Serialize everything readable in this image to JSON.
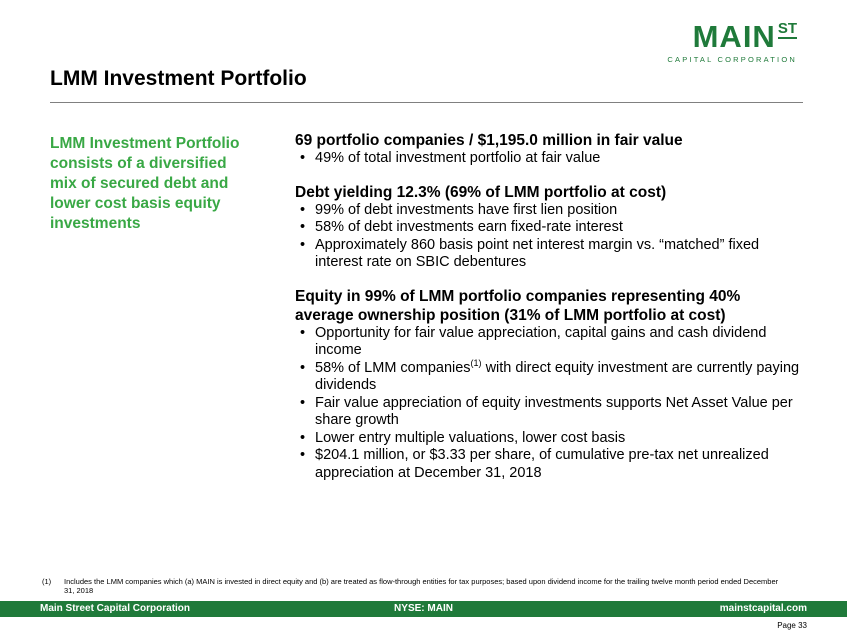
{
  "logo": {
    "main": "MAIN",
    "superscript": "ST",
    "subtitle": "CAPITAL CORPORATION"
  },
  "title": "LMM Investment Portfolio",
  "sidebar": {
    "text": "LMM Investment Portfolio consists of a diversified mix of secured debt and lower cost basis equity investments"
  },
  "sections": [
    {
      "heading": "69 portfolio companies / $1,195.0 million in fair value",
      "bullets": [
        "49% of total investment portfolio at fair value"
      ]
    },
    {
      "heading": "Debt yielding 12.3% (69% of LMM portfolio at cost)",
      "bullets": [
        "99% of debt investments have first lien position",
        "58% of debt investments earn fixed-rate interest",
        "Approximately 860 basis point net interest margin vs. “matched” fixed interest rate on SBIC debentures"
      ]
    },
    {
      "heading": "Equity in 99% of LMM portfolio companies representing 40% average ownership position (31% of LMM portfolio at cost)",
      "bullets": [
        {
          "text": "Opportunity for fair value appreciation, capital gains and cash dividend income"
        },
        {
          "before": "58% of LMM companies",
          "sup": "(1)",
          "after": " with direct equity investment are currently paying dividends"
        },
        {
          "text": "Fair value appreciation of equity investments supports Net Asset Value per share growth"
        },
        {
          "text": "Lower entry multiple valuations, lower cost basis"
        },
        {
          "text": "$204.1 million, or $3.33 per share, of cumulative pre-tax net unrealized appreciation at December 31, 2018"
        }
      ]
    }
  ],
  "footnote": {
    "number": "(1)",
    "text": "Includes the LMM companies which (a) MAIN is invested in direct equity and (b) are treated as flow-through entities for tax purposes; based upon dividend income for the trailing twelve month period ended December 31, 2018"
  },
  "footer": {
    "left": "Main Street Capital Corporation",
    "center": "NYSE: MAIN",
    "right": "mainstcapital.com"
  },
  "page": "Page 33",
  "colors": {
    "brand_green": "#1f7a3a",
    "accent_green": "#39a845"
  }
}
